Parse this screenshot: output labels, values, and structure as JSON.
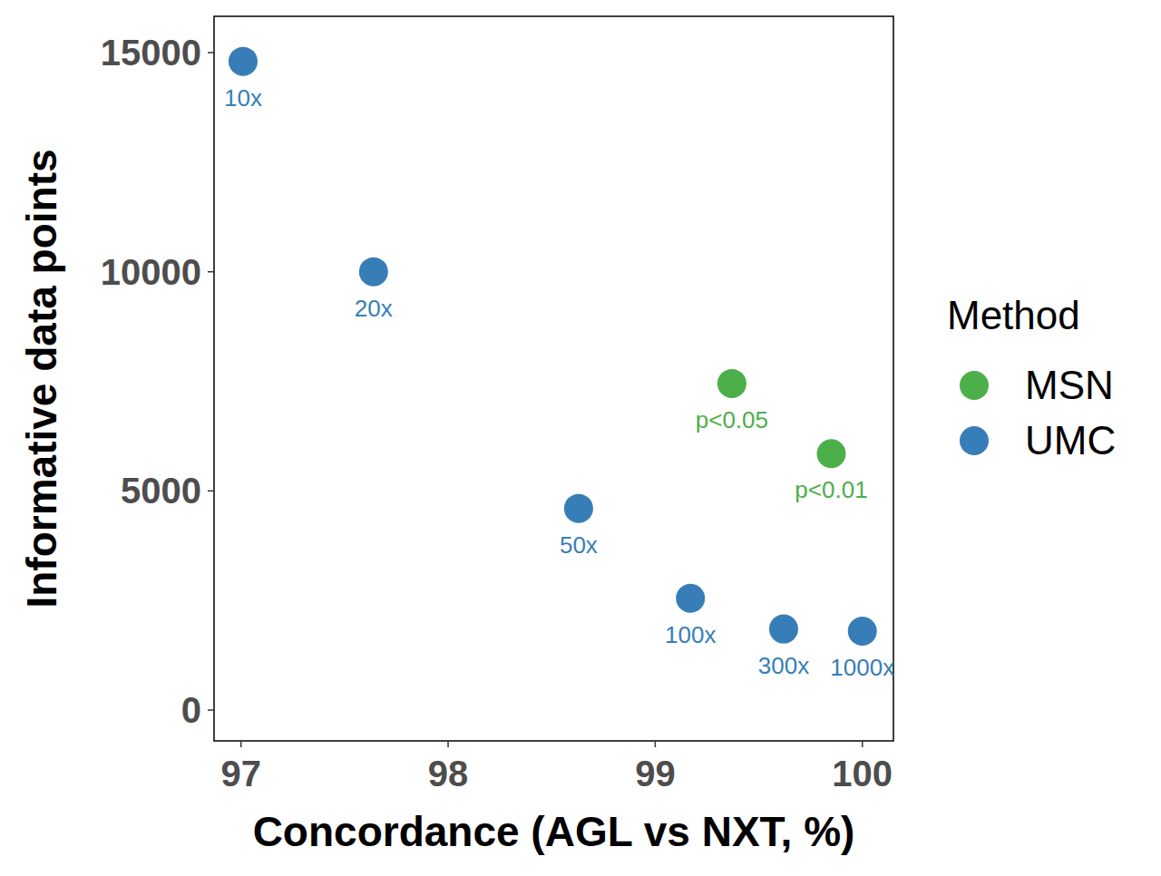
{
  "chart_data": {
    "type": "scatter",
    "x_label": "Concordance (AGL vs NXT, %)",
    "y_label": "Informative data points",
    "legend_title": "Method",
    "legend": "right",
    "grid": false,
    "xlim": [
      96.87,
      100.15
    ],
    "ylim": [
      -703,
      15828
    ],
    "xticks": [
      97,
      98,
      99,
      100
    ],
    "yticks": [
      0,
      5000,
      10000,
      15000
    ],
    "series": [
      {
        "name": "MSN",
        "color": "#4DAF4A",
        "marker": "circle",
        "x": [
          99.37,
          99.85
        ],
        "values": [
          7450,
          5850
        ],
        "labels": [
          "p<0.05",
          "p<0.01"
        ]
      },
      {
        "name": "UMC",
        "color": "#377EB8",
        "marker": "circle",
        "x": [
          97.01,
          97.64,
          98.63,
          99.17,
          99.62,
          100.0
        ],
        "values": [
          14800,
          10000,
          4600,
          2550,
          1850,
          1800
        ],
        "labels": [
          "10x",
          "20x",
          "50x",
          "100x",
          "300x",
          "1000x"
        ]
      }
    ]
  }
}
